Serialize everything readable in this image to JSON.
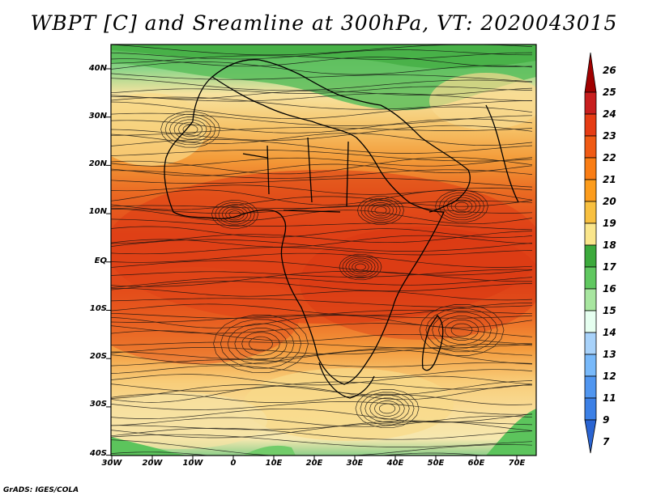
{
  "title": "WBPT [C] and Sreamline at 300hPa, VT: 2020043015",
  "credit": "GrADS: IGES/COLA",
  "lat_labels": [
    "40N",
    "30N",
    "20N",
    "10N",
    "EQ",
    "10S",
    "20S",
    "30S",
    "40S"
  ],
  "lon_labels": [
    "30W",
    "20W",
    "10W",
    "0",
    "10E",
    "20E",
    "30E",
    "40E",
    "50E",
    "60E",
    "70E"
  ],
  "colorbar": {
    "labels": [
      "26",
      "25",
      "24",
      "23",
      "22",
      "21",
      "20",
      "19",
      "18",
      "17",
      "16",
      "15",
      "14",
      "13",
      "12",
      "11",
      "9",
      "7"
    ],
    "colors": [
      "#a00000",
      "#c81e1e",
      "#e63c14",
      "#f05a14",
      "#fa7d14",
      "#fc9c1c",
      "#f8c040",
      "#fae68c",
      "#3caa3c",
      "#60c860",
      "#a8e6a0",
      "#e6fff0",
      "#a8d2fa",
      "#78b9fa",
      "#5096f0",
      "#3c80e6",
      "#2a64d2"
    ]
  },
  "colors": {
    "hot": "#e4481a",
    "warm": "#f6a23a",
    "mild": "#f9d98c",
    "green": "#5cc45c",
    "frame": "#000000"
  }
}
